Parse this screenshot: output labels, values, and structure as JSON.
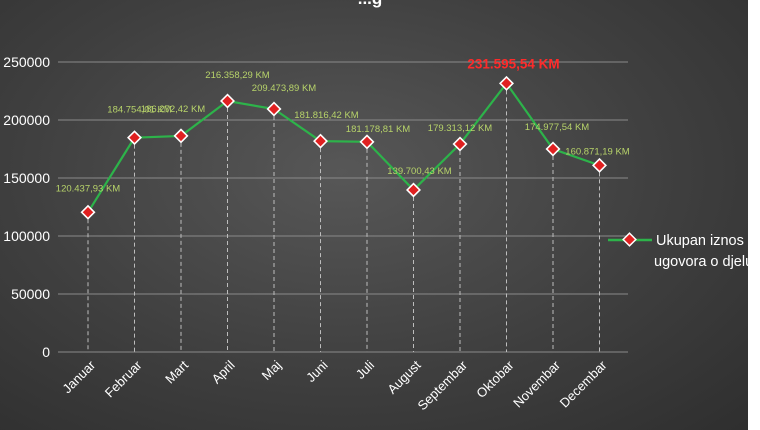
{
  "chart_data": {
    "type": "line",
    "title": "...g",
    "categories": [
      "Januar",
      "Februar",
      "Mart",
      "April",
      "Maj",
      "Juni",
      "Juli",
      "August",
      "Septembar",
      "Oktobar",
      "Novembar",
      "Decembar"
    ],
    "series": [
      {
        "name": "Ukupan iznos ugovora o djelu",
        "values": [
          120437.93,
          184754.01,
          186272.42,
          216358.29,
          209473.89,
          181816.42,
          181178.81,
          139700.43,
          179313.12,
          231595.54,
          174977.54,
          160871.19
        ],
        "labels": [
          "120.437,93 KM",
          "184.754,01 KM",
          "186.272,42 KM",
          "216.358,29 KM",
          "209.473,89 KM",
          "181.816,42 KM",
          "181.178,81 KM",
          "139.700,43 KM",
          "179.313,12 KM",
          "231.595,54 KM",
          "174.977,54 KM",
          "160.871,19 KM"
        ],
        "highlight_index": 9,
        "color": "#2db34a",
        "marker_fill": "#e02020",
        "marker_stroke": "#ffffff"
      }
    ],
    "yticks": [
      0,
      50000,
      100000,
      150000,
      200000,
      250000
    ],
    "ylim": [
      0,
      250000
    ],
    "grid": true,
    "legend_position": "right",
    "legend_lines": [
      "Ukupan iznos",
      "ugovora o djelu"
    ],
    "label_color": "#b7d36a",
    "highlight_color": "#ff2a2a"
  }
}
